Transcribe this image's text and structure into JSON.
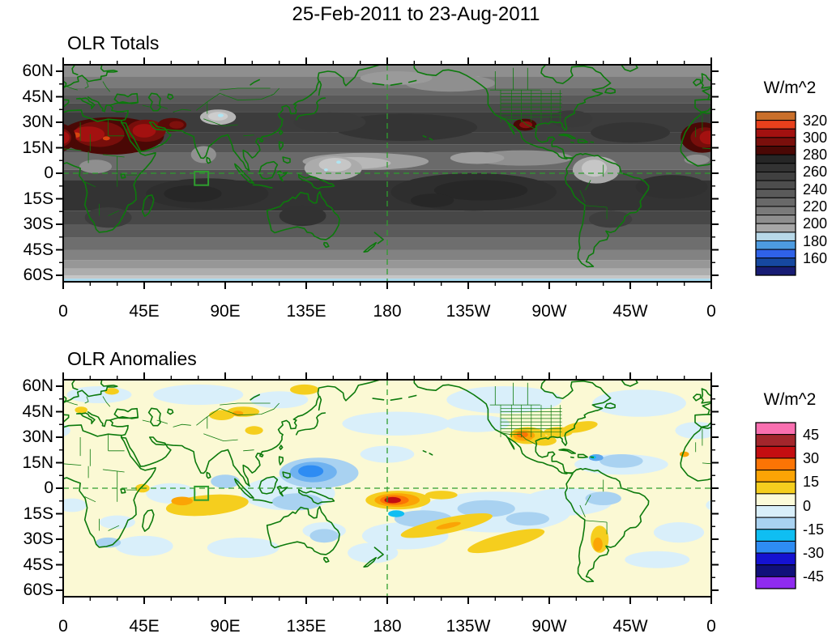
{
  "figure": {
    "title": "25-Feb-2011 to 23-Aug-2011"
  },
  "panels": [
    {
      "title": "OLR Totals",
      "units": "W/m^2",
      "y_ticks": [
        "60N",
        "45N",
        "30N",
        "15N",
        "0",
        "15S",
        "30S",
        "45S",
        "60S"
      ],
      "x_ticks": [
        "0",
        "45E",
        "90E",
        "135E",
        "180",
        "135W",
        "90W",
        "45W",
        "0"
      ],
      "colorbar": {
        "labels": [
          "320",
          "300",
          "280",
          "260",
          "240",
          "220",
          "200",
          "180",
          "160"
        ],
        "colors": [
          "#C96F2A",
          "#E8401C",
          "#A31110",
          "#7A0F0C",
          "#4A0805",
          "#262626",
          "#333333",
          "#404040",
          "#4D4D4D",
          "#5A5A5A",
          "#696969",
          "#7A7A7A",
          "#8E8E8E",
          "#A6A6A6",
          "#B8D8E8",
          "#4D9BE0",
          "#2F62E8",
          "#1648A0",
          "#181C74"
        ]
      }
    },
    {
      "title": "OLR Anomalies",
      "units": "W/m^2",
      "y_ticks": [
        "60N",
        "45N",
        "30N",
        "15N",
        "0",
        "15S",
        "30S",
        "45S",
        "60S"
      ],
      "x_ticks": [
        "0",
        "45E",
        "90E",
        "135E",
        "180",
        "135W",
        "90W",
        "45W",
        "0"
      ],
      "colorbar": {
        "labels": [
          "45",
          "30",
          "15",
          "0",
          "-15",
          "-30",
          "-45"
        ],
        "colors": [
          "#FA6FB0",
          "#A3262C",
          "#C40D11",
          "#FB7405",
          "#FBA405",
          "#F5CE1E",
          "#FCFBD9",
          "#D9EFFA",
          "#A9D2F1",
          "#0FBEF2",
          "#2E8CF3",
          "#1512D1",
          "#10107A",
          "#8F2BF0"
        ]
      }
    }
  ],
  "chart_data": [
    {
      "type": "heatmap",
      "subtype": "filled-contour-world-map",
      "title": "OLR Totals",
      "period": "25-Feb-2011 to 23-Aug-2011",
      "units": "W/m^2",
      "x_tick_labels": [
        "0",
        "45E",
        "90E",
        "135E",
        "180",
        "135W",
        "90W",
        "45W",
        "0"
      ],
      "y_tick_labels": [
        "60N",
        "45N",
        "30N",
        "15N",
        "0",
        "15S",
        "30S",
        "45S",
        "60S"
      ],
      "lon_range_deg": [
        0,
        360
      ],
      "lat_range_deg": [
        -63.8,
        63.8
      ],
      "contour_interval": 10,
      "labeled_levels": [
        320,
        300,
        280,
        260,
        240,
        220,
        200,
        180,
        160
      ],
      "legend_position": "right",
      "grid": "off",
      "reference_lines": [
        "dashed green equator line",
        "dashed green meridian at 180"
      ],
      "annotation_box": "green rectangle over central Indian Ocean approx 73E-81E, 1N-7S",
      "features": [
        "OLR > 300 W/m^2 (dark red) over Sahara and Arabian Peninsula, 10N-33N, 0-60E",
        "secondary dark-red maximum over Iran/Pakistan near 28N 60E",
        "dark-red maximum over northern Mexico / SW United States near 28N 105W",
        "dark-red area at right map edge (NW Africa near 20N, longitude wrap)",
        "low OLR (light gray, ~200) over Tibetan Plateau near 33N 86E with small <170 cyan spots",
        "low OLR band along ITCZ ~5-10N across Pacific and over western Pacific warm pool",
        "low OLR over northern South America near 0-5N 295E",
        "high OLR (dark gray, 260-280) zonal bands 0-20S over Indian Ocean, south-central Pacific and south Atlantic",
        "light gray toward 55-60S and OLR < 170 (pale blue) south of about 61S"
      ]
    },
    {
      "type": "heatmap",
      "subtype": "filled-contour-world-map",
      "title": "OLR Anomalies",
      "period": "25-Feb-2011 to 23-Aug-2011",
      "units": "W/m^2",
      "x_tick_labels": [
        "0",
        "45E",
        "90E",
        "135E",
        "180",
        "135W",
        "90W",
        "45W",
        "0"
      ],
      "y_tick_labels": [
        "60N",
        "45N",
        "30N",
        "15N",
        "0",
        "15S",
        "30S",
        "45S",
        "60S"
      ],
      "lon_range_deg": [
        0,
        360
      ],
      "lat_range_deg": [
        -63.8,
        63.8
      ],
      "contour_interval": 7.5,
      "labeled_levels": [
        45,
        30,
        15,
        0,
        -15,
        -30,
        -45
      ],
      "legend_position": "right",
      "grid": "off",
      "reference_lines": [
        "dashed green equator line",
        "dashed green meridian at 180"
      ],
      "annotation_box": "green rectangle over central Indian Ocean approx 73E-81E, 1N-7S",
      "features": [
        "strong positive anomaly (> +40, red core) centered near 7S just west of 180, rings of orange and gold",
        "negative anomaly (~ -30, blue core) east of the Philippines near 10N 138E",
        "positive anomaly (~ +25, orange core) over Texas / northern Mexico near 31N 102W",
        "gold positive band over south Indian Ocean ~5-15S, 55-105E",
        "diagonal gold positive bands in the South Pacific ~15-35S",
        "weak negative (pale blue) anomalies over SE Pacific, N Pacific, N Atlantic, N America and Eurasia high latitudes",
        "small cyan negative spots near 15S 175E and the Caribbean near 18N 66W",
        "background near zero (pale yellow) elsewhere"
      ]
    }
  ]
}
